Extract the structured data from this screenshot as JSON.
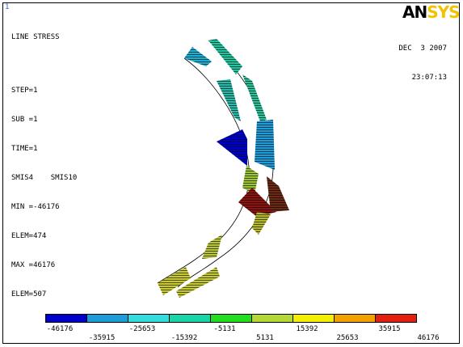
{
  "window_number": "1",
  "plot_title": "LINE STRESS",
  "info_lines": [
    "STEP=1",
    "SUB =1",
    "TIME=1",
    "SMIS4    SMIS10",
    "MIN =-46176",
    "ELEM=474",
    "MAX =46176",
    "ELEM=507"
  ],
  "logo": {
    "part1": "AN",
    "part2": "SYS"
  },
  "date": "DEC  3 2007",
  "time": "23:07:13",
  "colors": {
    "legend": [
      "#0000cc",
      "#1e9cd8",
      "#33dddd",
      "#18d4a6",
      "#22dd22",
      "#b4d936",
      "#f4ee00",
      "#f2a100",
      "#e31f10"
    ],
    "logo_accent": "#f2c200"
  },
  "legend_ticks_top": [
    "-46176",
    "-25653",
    "-5131",
    "15392",
    "35915"
  ],
  "legend_ticks_bottom": [
    "-35915",
    "-15392",
    "5131",
    "25653",
    "46176"
  ]
}
